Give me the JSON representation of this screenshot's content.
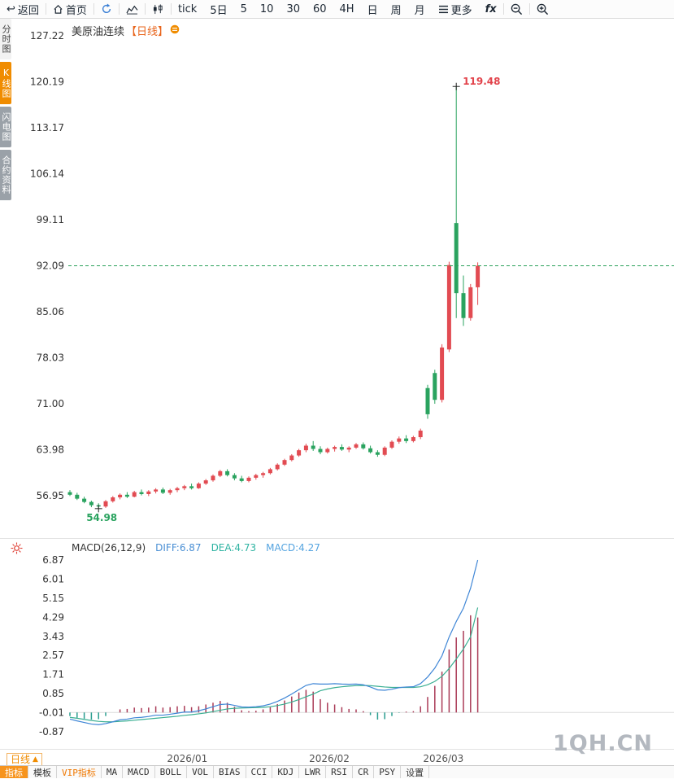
{
  "toolbar": {
    "back": "返回",
    "home": "首页",
    "tick": "tick",
    "d5": "5日",
    "m5": "5",
    "m10": "10",
    "m30": "30",
    "m60": "60",
    "h4": "4H",
    "day": "日",
    "week": "周",
    "month": "月",
    "more": "更多",
    "fx": "fx"
  },
  "sidebar": {
    "tabs": [
      "分时图",
      "K线图",
      "闪电图",
      "合约资料"
    ]
  },
  "chart_header": {
    "title": "美原油连续",
    "period_tag": "【日线】"
  },
  "indicator": {
    "name": "MACD(26,12,9)",
    "diff": "DIFF:6.87",
    "dea": "DEA:4.73",
    "macd": "MACD:4.27"
  },
  "bottom": {
    "period_label": "日线",
    "period_arrow": "▲"
  },
  "watermark": "1QH.CN",
  "footer": {
    "tabs": [
      "指标",
      "模板",
      "VIP指标",
      "MA",
      "MACD",
      "BOLL",
      "VOL",
      "BIAS",
      "CCI",
      "KDJ",
      "LWR",
      "RSI",
      "CR",
      "PSY",
      "设置"
    ]
  },
  "colors": {
    "up": "#e24b52",
    "down": "#2aa35f",
    "diff_line": "#3f86d6",
    "dea_line": "#3aaf92",
    "hist_pos": "#aa3b57",
    "hist_neg": "#2a9d8f",
    "dashed_line": "#2aa05a",
    "accent_orange": "#f08c00"
  },
  "chart_data": [
    {
      "type": "candlestick",
      "title": "美原油连续【日线】",
      "y_axis_labels": [
        "127.22",
        "120.19",
        "113.17",
        "106.14",
        "99.11",
        "92.09",
        "85.06",
        "78.03",
        "71.00",
        "63.98",
        "56.95"
      ],
      "current_price_line": 92.09,
      "high_annotation": {
        "label": "119.48",
        "index": 54
      },
      "low_annotation": {
        "label": "54.98",
        "index": 4
      },
      "x_labels": [
        {
          "label": "2026/01",
          "index": 16.4
        },
        {
          "label": "2026/02",
          "index": 36.25
        },
        {
          "label": "2026/03",
          "index": 52.2
        }
      ],
      "candles": [
        [
          57.5,
          57.8,
          56.9,
          57.1
        ],
        [
          57.1,
          57.4,
          56.3,
          56.5
        ],
        [
          56.5,
          56.8,
          55.8,
          56.0
        ],
        [
          56.0,
          56.2,
          55.2,
          55.5
        ],
        [
          55.5,
          55.8,
          54.98,
          55.3
        ],
        [
          55.3,
          56.3,
          55.1,
          56.1
        ],
        [
          56.1,
          56.9,
          55.9,
          56.7
        ],
        [
          56.7,
          57.3,
          56.4,
          57.1
        ],
        [
          57.1,
          57.5,
          56.6,
          56.8
        ],
        [
          56.8,
          57.7,
          56.7,
          57.5
        ],
        [
          57.5,
          57.9,
          57.0,
          57.2
        ],
        [
          57.2,
          57.8,
          56.9,
          57.6
        ],
        [
          57.6,
          58.1,
          57.3,
          57.9
        ],
        [
          57.9,
          58.2,
          57.2,
          57.4
        ],
        [
          57.4,
          58.0,
          57.1,
          57.8
        ],
        [
          57.8,
          58.3,
          57.5,
          58.1
        ],
        [
          58.1,
          58.6,
          57.8,
          58.4
        ],
        [
          58.4,
          58.8,
          57.9,
          58.1
        ],
        [
          58.1,
          59.0,
          58.0,
          58.8
        ],
        [
          58.8,
          59.5,
          58.6,
          59.3
        ],
        [
          59.3,
          60.2,
          59.1,
          60.0
        ],
        [
          60.0,
          60.9,
          59.8,
          60.7
        ],
        [
          60.7,
          61.0,
          59.9,
          60.1
        ],
        [
          60.1,
          60.4,
          59.3,
          59.6
        ],
        [
          59.6,
          60.0,
          59.0,
          59.2
        ],
        [
          59.2,
          59.9,
          59.0,
          59.7
        ],
        [
          59.7,
          60.3,
          59.4,
          60.1
        ],
        [
          60.1,
          60.6,
          59.7,
          60.4
        ],
        [
          60.4,
          61.2,
          60.2,
          61.0
        ],
        [
          61.0,
          61.9,
          60.8,
          61.7
        ],
        [
          61.7,
          62.6,
          61.5,
          62.4
        ],
        [
          62.4,
          63.3,
          62.2,
          63.1
        ],
        [
          63.1,
          64.1,
          62.9,
          63.9
        ],
        [
          63.9,
          64.9,
          63.6,
          64.6
        ],
        [
          64.6,
          65.3,
          63.8,
          64.1
        ],
        [
          64.1,
          64.5,
          63.3,
          63.6
        ],
        [
          63.6,
          64.3,
          63.4,
          64.1
        ],
        [
          64.1,
          64.6,
          63.7,
          64.4
        ],
        [
          64.4,
          64.8,
          63.8,
          64.0
        ],
        [
          64.0,
          64.5,
          63.6,
          64.3
        ],
        [
          64.3,
          65.0,
          64.1,
          64.8
        ],
        [
          64.8,
          65.1,
          64.0,
          64.2
        ],
        [
          64.2,
          64.6,
          63.4,
          63.6
        ],
        [
          63.6,
          63.9,
          62.9,
          63.2
        ],
        [
          63.2,
          64.5,
          63.0,
          64.3
        ],
        [
          64.3,
          65.4,
          64.1,
          65.2
        ],
        [
          65.2,
          66.0,
          64.9,
          65.7
        ],
        [
          65.7,
          66.2,
          65.0,
          65.3
        ],
        [
          65.3,
          66.1,
          65.1,
          65.9
        ],
        [
          65.9,
          67.2,
          65.6,
          66.9
        ],
        [
          73.4,
          73.9,
          68.7,
          69.4
        ],
        [
          75.7,
          76.2,
          71.0,
          71.6
        ],
        [
          71.6,
          80.1,
          71.2,
          79.6
        ],
        [
          79.3,
          92.7,
          78.9,
          92.2
        ],
        [
          98.6,
          119.48,
          84.1,
          87.9
        ],
        [
          87.9,
          90.6,
          82.9,
          84.1
        ],
        [
          84.1,
          89.3,
          83.7,
          88.8
        ],
        [
          88.8,
          92.6,
          86.1,
          92.09
        ]
      ]
    },
    {
      "type": "macd",
      "y_axis_labels": [
        "6.87",
        "6.01",
        "5.15",
        "4.29",
        "3.43",
        "2.57",
        "1.71",
        "0.85",
        "-0.01",
        "-0.87"
      ],
      "diff": [
        -0.3,
        -0.38,
        -0.45,
        -0.52,
        -0.55,
        -0.5,
        -0.42,
        -0.33,
        -0.3,
        -0.24,
        -0.22,
        -0.18,
        -0.12,
        -0.12,
        -0.08,
        -0.03,
        0.02,
        0.02,
        0.08,
        0.16,
        0.26,
        0.36,
        0.38,
        0.32,
        0.25,
        0.24,
        0.26,
        0.3,
        0.38,
        0.5,
        0.65,
        0.83,
        1.03,
        1.22,
        1.3,
        1.28,
        1.28,
        1.3,
        1.28,
        1.27,
        1.28,
        1.25,
        1.15,
        1.02,
        1.0,
        1.05,
        1.12,
        1.15,
        1.16,
        1.3,
        1.6,
        2.0,
        2.55,
        3.4,
        4.1,
        4.7,
        5.6,
        6.87
      ],
      "dea": [
        -0.22,
        -0.26,
        -0.31,
        -0.36,
        -0.4,
        -0.42,
        -0.42,
        -0.4,
        -0.38,
        -0.35,
        -0.32,
        -0.29,
        -0.26,
        -0.23,
        -0.2,
        -0.17,
        -0.13,
        -0.1,
        -0.06,
        -0.02,
        0.04,
        0.1,
        0.16,
        0.19,
        0.2,
        0.21,
        0.22,
        0.23,
        0.26,
        0.31,
        0.38,
        0.47,
        0.58,
        0.71,
        0.83,
        0.98,
        1.06,
        1.12,
        1.16,
        1.19,
        1.21,
        1.22,
        1.21,
        1.18,
        1.15,
        1.13,
        1.13,
        1.13,
        1.13,
        1.16,
        1.25,
        1.4,
        1.63,
        1.98,
        2.41,
        2.86,
        3.41,
        4.73
      ]
    }
  ]
}
